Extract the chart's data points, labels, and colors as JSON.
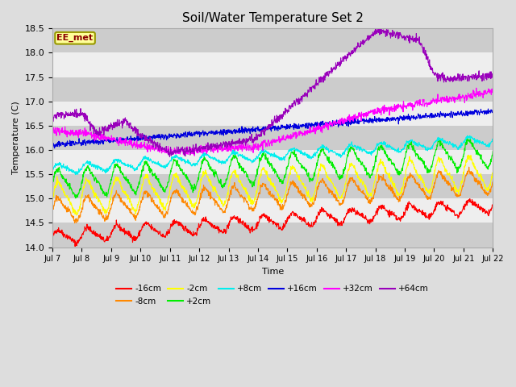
{
  "title": "Soil/Water Temperature Set 2",
  "xlabel": "Time",
  "ylabel": "Temperature (C)",
  "ylim": [
    14.0,
    18.5
  ],
  "yticks": [
    14.0,
    14.5,
    15.0,
    15.5,
    16.0,
    16.5,
    17.0,
    17.5,
    18.0,
    18.5
  ],
  "annotation_text": "EE_met",
  "annotation_box_color": "#FFFF99",
  "annotation_border_color": "#999900",
  "annotation_text_color": "#8B0000",
  "fig_bg_color": "#DDDDDD",
  "plot_bg_color": "#EEEEEE",
  "band_colors": [
    "#CCCCCC",
    "#EEEEEE"
  ],
  "series": [
    {
      "label": "-16cm",
      "color": "#FF0000"
    },
    {
      "label": "-8cm",
      "color": "#FF8800"
    },
    {
      "label": "-2cm",
      "color": "#FFFF00"
    },
    {
      "label": "+2cm",
      "color": "#00EE00"
    },
    {
      "label": "+8cm",
      "color": "#00EEEE"
    },
    {
      "label": "+16cm",
      "color": "#0000DD"
    },
    {
      "label": "+32cm",
      "color": "#FF00FF"
    },
    {
      "label": "+64cm",
      "color": "#9900BB"
    }
  ],
  "n_points": 1440,
  "seed": 42
}
